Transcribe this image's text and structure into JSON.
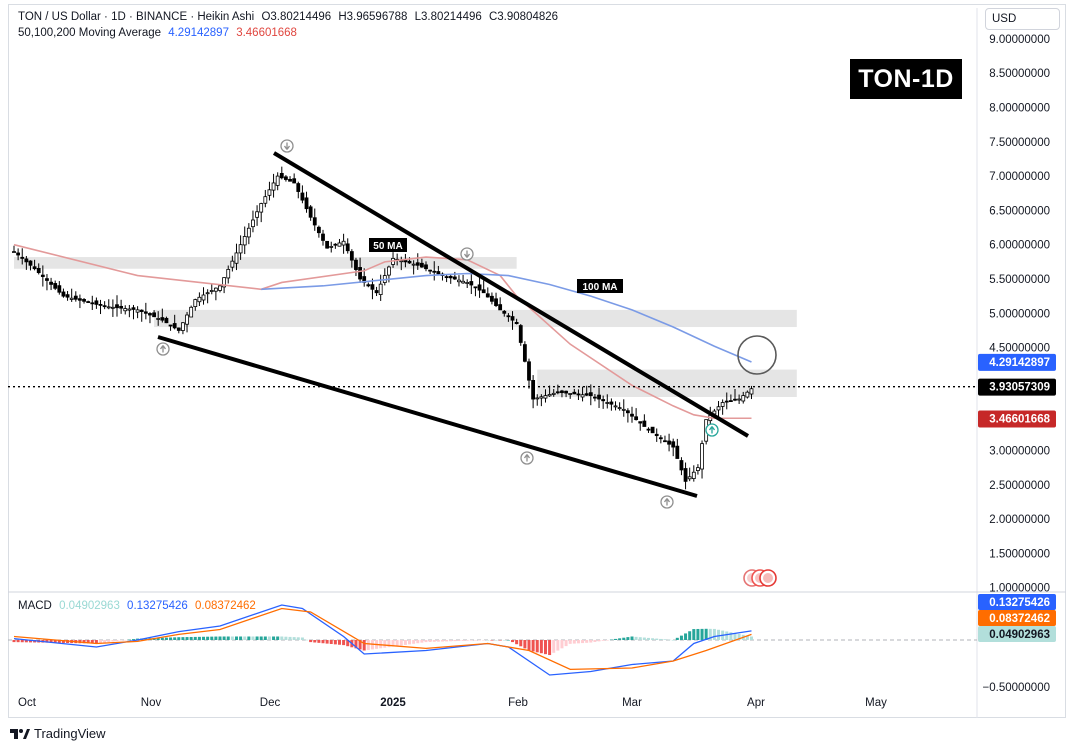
{
  "header": {
    "symbol_line": "TON / US Dollar · 1D · BINANCE · Heikin Ashi",
    "ohlc": {
      "open": "O3.80214496",
      "high": "H3.96596788",
      "low": "L3.80214496",
      "close": "C3.90804826"
    },
    "ma_label": "50,100,200 Moving Average",
    "ma_values": [
      "4.29142897",
      "3.46601668"
    ]
  },
  "currency_button": "USD",
  "badge": "TON-1D",
  "macd": {
    "label": "MACD",
    "values": [
      "0.04902963",
      "0.13275426",
      "0.08372462"
    ]
  },
  "footer": {
    "brand": "TradingView"
  },
  "colors": {
    "up": "#000000",
    "down": "#000000",
    "ma50": "#e39a9a",
    "ma100": "#7b9be6",
    "macd_line": "#2962ff",
    "signal_line": "#ff6d00",
    "hist_up_strong": "#26a69a",
    "hist_up_weak": "#b2dfdb",
    "hist_down_strong": "#ef5350",
    "hist_down_weak": "#ffcdd2",
    "zone": "#e0e0e0"
  },
  "chart_data": {
    "type": "candlestick",
    "title": "TON / US Dollar · 1D · BINANCE · Heikin Ashi",
    "x_ticks": [
      "Oct",
      "Nov",
      "Dec",
      "2025",
      "Feb",
      "Mar",
      "Apr",
      "May"
    ],
    "y_ticks": [
      "9.00000000",
      "8.50000000",
      "8.00000000",
      "7.50000000",
      "7.00000000",
      "6.50000000",
      "6.00000000",
      "5.50000000",
      "5.00000000",
      "4.50000000",
      "3.00000000",
      "2.50000000",
      "2.00000000",
      "1.50000000",
      "1.00000000"
    ],
    "ylim": [
      0.95,
      9.1
    ],
    "price_labels": [
      {
        "value": 4.29142897,
        "text": "4.29142897",
        "color": "#2962ff"
      },
      {
        "value": 3.93057309,
        "text": "3.93057309",
        "color": "#000000"
      },
      {
        "value": 3.46601668,
        "text": "3.46601668",
        "color": "#c62828"
      }
    ],
    "annotations": [
      "50 MA",
      "100 MA"
    ],
    "ma50": [
      [
        0,
        6.0
      ],
      [
        30,
        5.55
      ],
      [
        60,
        5.35
      ],
      [
        65,
        5.45
      ],
      [
        85,
        5.62
      ],
      [
        90,
        5.75
      ],
      [
        100,
        5.82
      ],
      [
        110,
        5.78
      ],
      [
        118,
        5.55
      ],
      [
        122,
        5.25
      ],
      [
        135,
        4.55
      ],
      [
        150,
        3.95
      ],
      [
        160,
        3.65
      ],
      [
        165,
        3.52
      ],
      [
        170,
        3.47
      ],
      [
        179,
        3.47
      ]
    ],
    "ma100": [
      [
        60,
        5.35
      ],
      [
        75,
        5.4
      ],
      [
        100,
        5.55
      ],
      [
        110,
        5.58
      ],
      [
        120,
        5.55
      ],
      [
        130,
        5.42
      ],
      [
        140,
        5.25
      ],
      [
        150,
        5.05
      ],
      [
        160,
        4.8
      ],
      [
        170,
        4.52
      ],
      [
        179,
        4.29
      ]
    ],
    "macd_series": {
      "ylim": [
        -0.55,
        0.6
      ],
      "y_tick": "−0.50000000",
      "macd": [
        [
          0,
          0.02
        ],
        [
          20,
          -0.1
        ],
        [
          30,
          0.0
        ],
        [
          40,
          0.12
        ],
        [
          50,
          0.2
        ],
        [
          65,
          0.5
        ],
        [
          70,
          0.45
        ],
        [
          80,
          0.05
        ],
        [
          85,
          -0.2
        ],
        [
          100,
          -0.15
        ],
        [
          115,
          -0.05
        ],
        [
          120,
          -0.1
        ],
        [
          130,
          -0.5
        ],
        [
          140,
          -0.45
        ],
        [
          150,
          -0.35
        ],
        [
          160,
          -0.3
        ],
        [
          165,
          -0.05
        ],
        [
          170,
          0.05
        ],
        [
          179,
          0.13
        ]
      ],
      "signal": [
        [
          0,
          0.05
        ],
        [
          20,
          -0.05
        ],
        [
          30,
          -0.02
        ],
        [
          40,
          0.08
        ],
        [
          50,
          0.15
        ],
        [
          65,
          0.45
        ],
        [
          72,
          0.4
        ],
        [
          85,
          -0.05
        ],
        [
          100,
          -0.12
        ],
        [
          115,
          -0.05
        ],
        [
          125,
          -0.15
        ],
        [
          135,
          -0.42
        ],
        [
          150,
          -0.4
        ],
        [
          160,
          -0.3
        ],
        [
          168,
          -0.15
        ],
        [
          179,
          0.08
        ]
      ]
    }
  }
}
